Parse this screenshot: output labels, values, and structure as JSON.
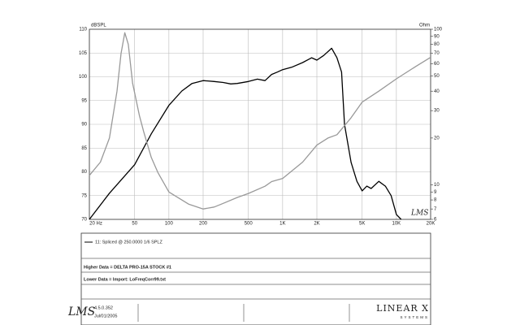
{
  "chart_data": {
    "type": "line",
    "ylabel": "dBSPL",
    "y2label": "Ohm",
    "annotation": "LMS",
    "xscale": "log",
    "xlim": [
      20,
      20000
    ],
    "xticks": [
      {
        "value": 20,
        "label": "20 Hz"
      },
      50,
      100,
      200,
      500,
      {
        "value": 1000,
        "label": "1K"
      },
      {
        "value": 2000,
        "label": "2K"
      },
      {
        "value": 5000,
        "label": "5K"
      },
      {
        "value": 10000,
        "label": "10K"
      },
      {
        "value": 20000,
        "label": "20K"
      }
    ],
    "ylim": [
      70,
      110
    ],
    "yticks": [
      70,
      75,
      80,
      85,
      90,
      95,
      100,
      105,
      110
    ],
    "y2scale": "log",
    "y2lim": [
      6,
      100
    ],
    "y2ticks": [
      6,
      7,
      8,
      9,
      10,
      20,
      30,
      40,
      50,
      60,
      70,
      80,
      90,
      100
    ],
    "grid": true,
    "series": [
      {
        "name": "SPL",
        "color": "#000000",
        "axis": "y",
        "x": [
          20,
          30,
          50,
          70,
          100,
          130,
          160,
          200,
          250,
          300,
          350,
          400,
          500,
          600,
          700,
          800,
          900,
          1000,
          1200,
          1500,
          1800,
          2000,
          2300,
          2700,
          3000,
          3300,
          3500,
          4000,
          4500,
          5000,
          5500,
          6000,
          7000,
          8000,
          9000,
          10000,
          11000
        ],
        "values": [
          70,
          75.5,
          81.5,
          88,
          94,
          97,
          98.6,
          99.2,
          99,
          98.8,
          98.5,
          98.6,
          99,
          99.5,
          99.2,
          100.5,
          101,
          101.5,
          102,
          103,
          104,
          103.5,
          104.5,
          106,
          104,
          101,
          90,
          82,
          78,
          76,
          77,
          76.5,
          78,
          77,
          75,
          71,
          70
        ]
      },
      {
        "name": "Impedance",
        "color": "#999999",
        "axis": "y2",
        "x": [
          20,
          25,
          30,
          35,
          38,
          41,
          44,
          48,
          55,
          60,
          70,
          80,
          100,
          150,
          200,
          250,
          300,
          400,
          500,
          700,
          800,
          1000,
          1500,
          2000,
          2500,
          3000,
          4000,
          5000,
          7000,
          10000,
          15000,
          20000
        ],
        "values": [
          11.5,
          14,
          20,
          40,
          70,
          95,
          80,
          45,
          28,
          22,
          15,
          12,
          9,
          7.5,
          7,
          7.2,
          7.6,
          8.3,
          8.8,
          9.8,
          10.5,
          11,
          14,
          18,
          20,
          21,
          27,
          34,
          40,
          48,
          58,
          66
        ]
      }
    ]
  },
  "legend_entry": "11: Spliced @ 250.0000   1/6 SPLZ",
  "notes": [
    "Higher Data = DELTA PRO-15A STOCK #1",
    "Lower  Data = Import: LoFreqCorr99.txt"
  ],
  "footer": {
    "logo": "LMS",
    "version": "4.5.0.352",
    "date": "Jul/01/2005",
    "brand": "LINEAR X",
    "brand_sub": "SYSTEMS"
  }
}
